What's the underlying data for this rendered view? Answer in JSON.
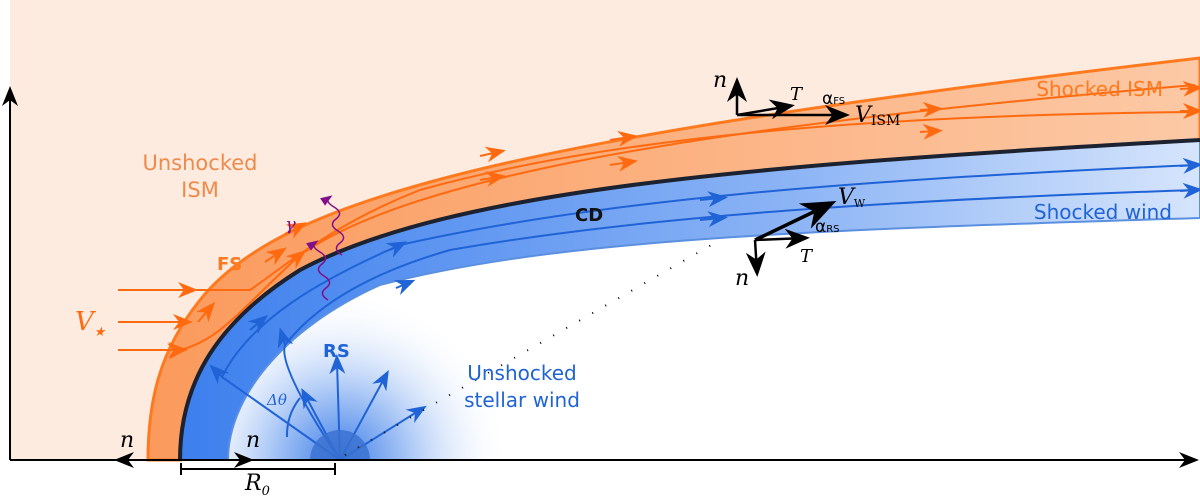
{
  "labels": {
    "unshocked_ism_line1": "Unshocked",
    "unshocked_ism_line2": "ISM",
    "shocked_ism": "Shocked ISM",
    "shocked_wind": "Shocked wind",
    "unshocked_wind_line1": "Unshocked",
    "unshocked_wind_line2": "stellar wind",
    "fs": "FS",
    "rs": "RS",
    "cd": "CD",
    "v_star": "V",
    "v_star_sub": "★",
    "gamma": "γ",
    "delta_theta": "Δθ",
    "r0": "R",
    "r0_sub": "0",
    "n": "n",
    "t": "T",
    "v_ism": "V",
    "v_ism_sub": "ISM",
    "v_w": "V",
    "v_w_sub": "W",
    "alpha_fs": "α",
    "alpha_fs_sub": "FS",
    "alpha_rs": "α",
    "alpha_rs_sub": "RS"
  },
  "colors": {
    "ism_bg": "#fdebe0",
    "orange": "#ff7a1f",
    "orange_fill": "#fba26a",
    "blue": "#1f63d6",
    "blue_fill": "#4b8af0",
    "cd": "#1c2230"
  }
}
